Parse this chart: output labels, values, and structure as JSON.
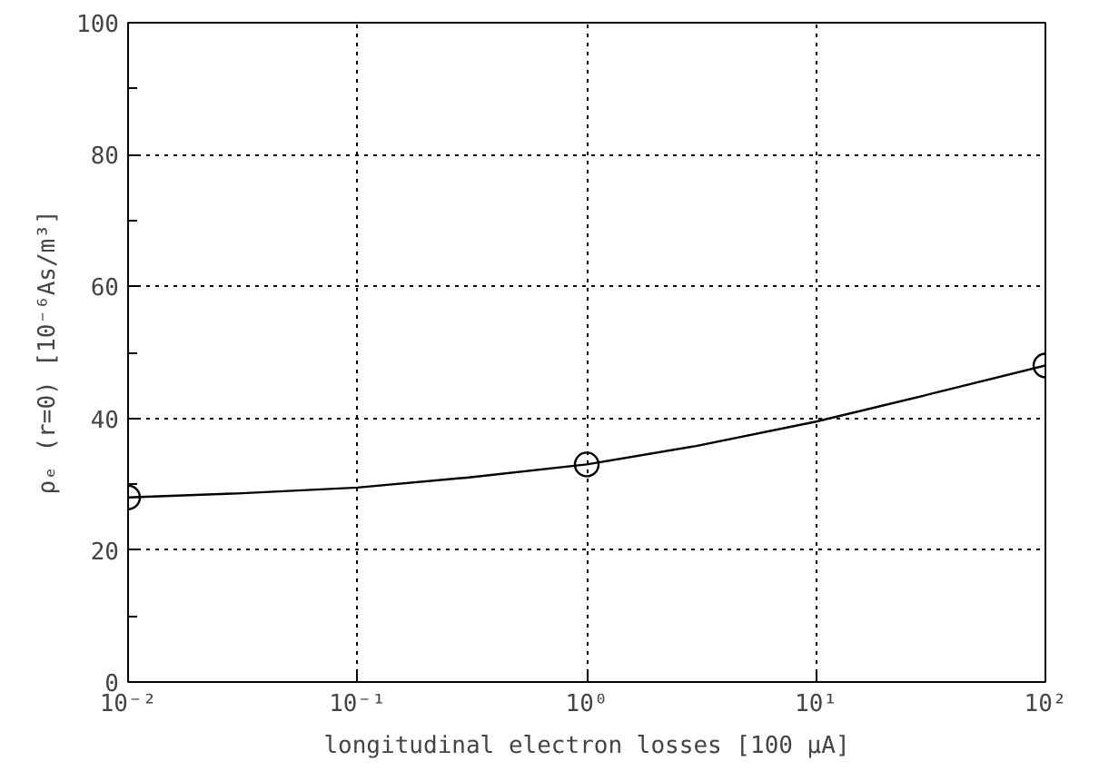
{
  "chart_data": {
    "type": "line",
    "xlabel": "longitudinal electron losses [100 μA]",
    "ylabel": "ρₑ (r=0) [10⁻⁶As/m³]",
    "log": "x",
    "xlim": [
      0.01,
      100
    ],
    "ylim": [
      0,
      100
    ],
    "xticks": [
      {
        "value": 0.01,
        "label": "10⁻²"
      },
      {
        "value": 0.1,
        "label": "10⁻¹"
      },
      {
        "value": 1,
        "label": "10⁰"
      },
      {
        "value": 10,
        "label": "10¹"
      },
      {
        "value": 100,
        "label": "10²"
      }
    ],
    "yticks": [
      0,
      {
        "value": 10,
        "label": null
      },
      20,
      {
        "value": 30,
        "label": null
      },
      40,
      {
        "value": 50,
        "label": null
      },
      60,
      {
        "value": 70,
        "label": null
      },
      80,
      {
        "value": 90,
        "label": null
      },
      100
    ],
    "grid": true,
    "series": [
      {
        "color": "#000000",
        "marker": "none",
        "x": [
          0.01,
          0.03,
          0.1,
          0.3,
          1,
          3,
          10,
          30,
          100
        ],
        "values": [
          28,
          28.6,
          29.5,
          31,
          33,
          35.8,
          39.5,
          43.5,
          48
        ]
      },
      {
        "type": "scatter",
        "color": "#000000",
        "marker": "circle",
        "x": [
          0.01,
          1,
          100
        ],
        "values": [
          28,
          33,
          48
        ]
      }
    ]
  }
}
